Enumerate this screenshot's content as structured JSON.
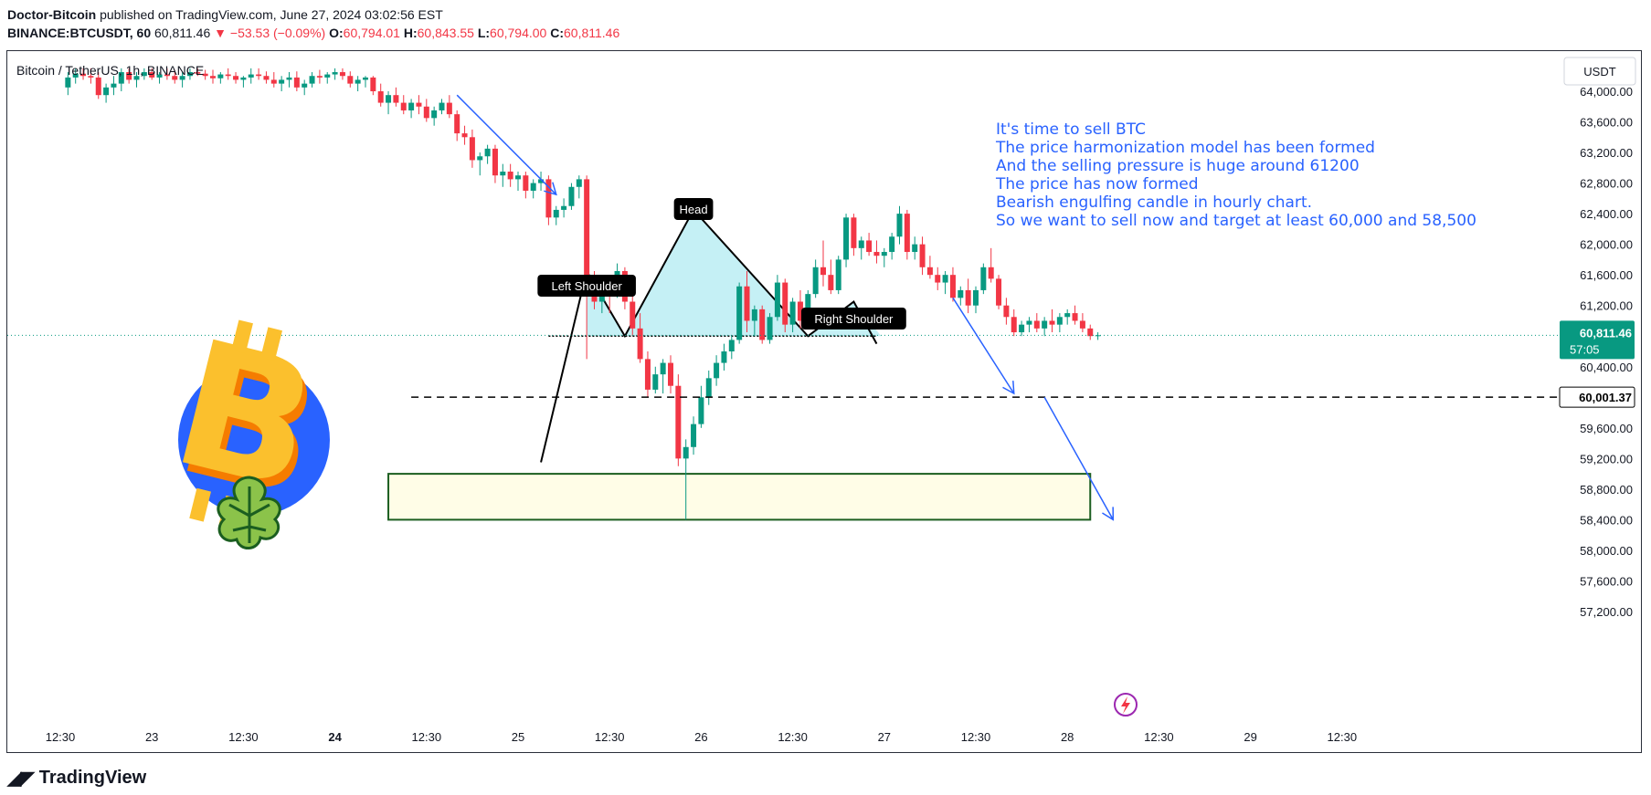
{
  "header": {
    "author": "Doctor-Bitcoin",
    "published": "published on TradingView.com, June 27, 2024 03:02:56 EST",
    "symbol": "BINANCE:BTCUSDT, 60",
    "last": "60,811.46",
    "change": "−53.53 (−0.09%)",
    "o_label": "O:",
    "o": "60,794.01",
    "h_label": "H:",
    "h": "60,843.55",
    "l_label": "L:",
    "l": "60,794.00",
    "c_label": "C:",
    "c": "60,811.46"
  },
  "footer": {
    "brand": "TradingView"
  },
  "colors": {
    "up": "#089981",
    "down": "#f23645",
    "pattern_fill": "#b2ebf2",
    "arrow": "#2962ff",
    "target_box": "#1b5e20",
    "annotation": "#2962ff"
  },
  "chart_data": {
    "type": "candlestick",
    "title": "Bitcoin / TetherUS, 1h, BINANCE",
    "currency": "USDT",
    "ylim": [
      56800,
      64300
    ],
    "yticks": [
      "64,000.00",
      "63,600.00",
      "63,200.00",
      "62,800.00",
      "62,400.00",
      "62,000.00",
      "61,600.00",
      "61,200.00",
      "60,400.00",
      "59,600.00",
      "59,200.00",
      "58,800.00",
      "58,400.00",
      "58,000.00",
      "57,600.00",
      "57,200.00"
    ],
    "ytick_values": [
      64000,
      63600,
      63200,
      62800,
      62400,
      62000,
      61600,
      61200,
      60400,
      59600,
      59200,
      58800,
      58400,
      58000,
      57600,
      57200
    ],
    "xticks": [
      "12:30",
      "23",
      "12:30",
      "24",
      "12:30",
      "25",
      "12:30",
      "26",
      "12:30",
      "27",
      "12:30",
      "28",
      "12:30",
      "29",
      "12:30"
    ],
    "xtick_hours": [
      -60,
      -48,
      -36,
      -24,
      -12,
      0,
      12,
      24,
      36,
      48,
      60,
      72,
      84,
      96,
      108
    ],
    "price_label": "60,811.46",
    "countdown": "57:05",
    "level_label": "60,001.37",
    "level": 60001.37,
    "ohlc": [
      [
        64050,
        64250,
        63950,
        64180
      ],
      [
        64180,
        64300,
        64100,
        64230
      ],
      [
        64230,
        64300,
        64150,
        64200
      ],
      [
        64200,
        64300,
        64100,
        64180
      ],
      [
        64180,
        64250,
        63900,
        63950
      ],
      [
        63950,
        64100,
        63850,
        64050
      ],
      [
        64050,
        64200,
        63950,
        64100
      ],
      [
        64100,
        64300,
        64000,
        64250
      ],
      [
        64250,
        64300,
        64100,
        64150
      ],
      [
        64150,
        64250,
        64050,
        64200
      ],
      [
        64200,
        64300,
        64150,
        64250
      ],
      [
        64250,
        64300,
        64150,
        64180
      ],
      [
        64180,
        64250,
        64100,
        64220
      ],
      [
        64220,
        64300,
        64150,
        64200
      ],
      [
        64200,
        64280,
        64100,
        64150
      ],
      [
        64150,
        64250,
        64050,
        64200
      ],
      [
        64200,
        64300,
        64150,
        64250
      ],
      [
        64250,
        64300,
        64200,
        64230
      ],
      [
        64230,
        64280,
        64150,
        64200
      ],
      [
        64200,
        64280,
        64100,
        64170
      ],
      [
        64170,
        64250,
        64100,
        64220
      ],
      [
        64220,
        64300,
        64150,
        64200
      ],
      [
        64200,
        64250,
        64100,
        64150
      ],
      [
        64150,
        64200,
        64050,
        64180
      ],
      [
        64180,
        64300,
        64100,
        64220
      ],
      [
        64220,
        64300,
        64150,
        64200
      ],
      [
        64200,
        64260,
        64100,
        64150
      ],
      [
        64150,
        64250,
        64050,
        64100
      ],
      [
        64100,
        64200,
        64000,
        64150
      ],
      [
        64150,
        64250,
        64050,
        64180
      ],
      [
        64180,
        64260,
        64000,
        64050
      ],
      [
        64050,
        64150,
        63950,
        64100
      ],
      [
        64100,
        64250,
        64050,
        64200
      ],
      [
        64200,
        64280,
        64100,
        64180
      ],
      [
        64180,
        64250,
        64100,
        64220
      ],
      [
        64220,
        64300,
        64150,
        64250
      ],
      [
        64250,
        64300,
        64150,
        64200
      ],
      [
        64200,
        64260,
        64050,
        64100
      ],
      [
        64100,
        64200,
        64000,
        64150
      ],
      [
        64150,
        64200,
        64050,
        64180
      ],
      [
        64180,
        64200,
        63950,
        64000
      ],
      [
        64000,
        64100,
        63800,
        63850
      ],
      [
        63850,
        64000,
        63700,
        63950
      ],
      [
        63950,
        64050,
        63800,
        63850
      ],
      [
        63850,
        63950,
        63700,
        63750
      ],
      [
        63750,
        63900,
        63650,
        63850
      ],
      [
        63850,
        63950,
        63700,
        63800
      ],
      [
        63800,
        63900,
        63600,
        63650
      ],
      [
        63650,
        63800,
        63550,
        63750
      ],
      [
        63750,
        63900,
        63700,
        63850
      ],
      [
        63850,
        63950,
        63650,
        63700
      ],
      [
        63700,
        63750,
        63350,
        63450
      ],
      [
        63450,
        63550,
        63300,
        63400
      ],
      [
        63400,
        63500,
        63000,
        63100
      ],
      [
        63100,
        63200,
        62900,
        63150
      ],
      [
        63150,
        63300,
        63050,
        63250
      ],
      [
        63250,
        63300,
        62800,
        62900
      ],
      [
        62900,
        63050,
        62750,
        62950
      ],
      [
        62950,
        63050,
        62750,
        62850
      ],
      [
        62850,
        62950,
        62700,
        62900
      ],
      [
        62900,
        62950,
        62600,
        62700
      ],
      [
        62700,
        62850,
        62600,
        62800
      ],
      [
        62800,
        62950,
        62700,
        62850
      ],
      [
        62850,
        62900,
        62250,
        62350
      ],
      [
        62350,
        62500,
        62250,
        62450
      ],
      [
        62450,
        62600,
        62350,
        62500
      ],
      [
        62500,
        62800,
        62450,
        62750
      ],
      [
        62750,
        62900,
        62600,
        62850
      ],
      [
        62850,
        62900,
        60500,
        61400
      ],
      [
        61400,
        61650,
        61150,
        61250
      ],
      [
        61250,
        61500,
        61100,
        61400
      ],
      [
        61400,
        61600,
        61100,
        61350
      ],
      [
        61350,
        61750,
        61300,
        61650
      ],
      [
        61650,
        61700,
        61150,
        61250
      ],
      [
        61250,
        61350,
        60800,
        60900
      ],
      [
        60900,
        61100,
        60450,
        60500
      ],
      [
        60500,
        60600,
        60000,
        60100
      ],
      [
        60100,
        60400,
        60050,
        60300
      ],
      [
        60300,
        60500,
        60050,
        60450
      ],
      [
        60450,
        60550,
        60050,
        60150
      ],
      [
        60150,
        60300,
        59100,
        59200
      ],
      [
        59200,
        59450,
        58400,
        59350
      ],
      [
        59350,
        59750,
        59250,
        59650
      ],
      [
        59650,
        60150,
        59600,
        60000
      ],
      [
        60000,
        60350,
        59900,
        60250
      ],
      [
        60250,
        60550,
        60150,
        60450
      ],
      [
        60450,
        60700,
        60350,
        60600
      ],
      [
        60600,
        60800,
        60500,
        60750
      ],
      [
        60750,
        61500,
        60700,
        61450
      ],
      [
        61450,
        61650,
        60850,
        61000
      ],
      [
        61000,
        61200,
        60800,
        61150
      ],
      [
        61150,
        61200,
        60700,
        60750
      ],
      [
        60750,
        61100,
        60700,
        61050
      ],
      [
        61050,
        61600,
        61000,
        61500
      ],
      [
        61500,
        61550,
        60850,
        60950
      ],
      [
        60950,
        61300,
        60850,
        61250
      ],
      [
        61250,
        61400,
        60900,
        61000
      ],
      [
        61000,
        61400,
        60950,
        61350
      ],
      [
        61350,
        61800,
        61300,
        61700
      ],
      [
        61700,
        62050,
        61450,
        61600
      ],
      [
        61600,
        61800,
        61350,
        61400
      ],
      [
        61400,
        61850,
        61350,
        61800
      ],
      [
        61800,
        62400,
        61700,
        62350
      ],
      [
        62350,
        62400,
        61850,
        61950
      ],
      [
        61950,
        62100,
        61800,
        62050
      ],
      [
        62050,
        62150,
        61850,
        61900
      ],
      [
        61900,
        62050,
        61750,
        61850
      ],
      [
        61850,
        61950,
        61700,
        61900
      ],
      [
        61900,
        62150,
        61800,
        62100
      ],
      [
        62100,
        62500,
        62000,
        62400
      ],
      [
        62400,
        62450,
        61800,
        61900
      ],
      [
        61900,
        62100,
        61800,
        62000
      ],
      [
        62000,
        62100,
        61600,
        61700
      ],
      [
        61700,
        61850,
        61550,
        61600
      ],
      [
        61600,
        61700,
        61400,
        61500
      ],
      [
        61500,
        61650,
        61350,
        61600
      ],
      [
        61600,
        61700,
        61250,
        61300
      ],
      [
        61300,
        61450,
        61200,
        61400
      ],
      [
        61400,
        61550,
        61100,
        61200
      ],
      [
        61200,
        61450,
        61100,
        61400
      ],
      [
        61400,
        61750,
        61350,
        61700
      ],
      [
        61700,
        61950,
        61500,
        61550
      ],
      [
        61550,
        61600,
        61150,
        61200
      ],
      [
        61200,
        61300,
        60950,
        61050
      ],
      [
        61050,
        61150,
        60800,
        60850
      ],
      [
        60850,
        61000,
        60800,
        60950
      ],
      [
        60950,
        61050,
        60850,
        61000
      ],
      [
        61000,
        61100,
        60850,
        60900
      ],
      [
        60900,
        61050,
        60800,
        61000
      ],
      [
        61000,
        61150,
        60850,
        60950
      ],
      [
        60950,
        61100,
        60850,
        61050
      ],
      [
        61050,
        61150,
        60950,
        61100
      ],
      [
        61100,
        61200,
        60950,
        61000
      ],
      [
        61000,
        61100,
        60850,
        60900
      ],
      [
        60900,
        60950,
        60750,
        60800
      ],
      [
        60800,
        60850,
        60750,
        60811
      ]
    ],
    "annotation": {
      "lines": [
        "It's time to sell BTC",
        "The price harmonization model has been formed",
        "And the selling pressure is huge around 61200",
        "The price has now formed",
        "Bearish engulfing candle in hourly chart.",
        "So we want to sell now and target at least 60,000 and 58,500"
      ]
    },
    "pattern_labels": {
      "left": "Left Shoulder",
      "head": "Head",
      "right": "Right Shoulder"
    },
    "pattern_points": [
      [
        3,
        59150
      ],
      [
        9,
        61650
      ],
      [
        14,
        60800
      ],
      [
        23,
        62450
      ],
      [
        38,
        60800
      ],
      [
        44,
        61250
      ],
      [
        47,
        60700
      ]
    ],
    "neckline": 60800,
    "target_zone": {
      "from": 58400,
      "to": 59000,
      "start_hour": -17,
      "end_hour": 75
    }
  }
}
